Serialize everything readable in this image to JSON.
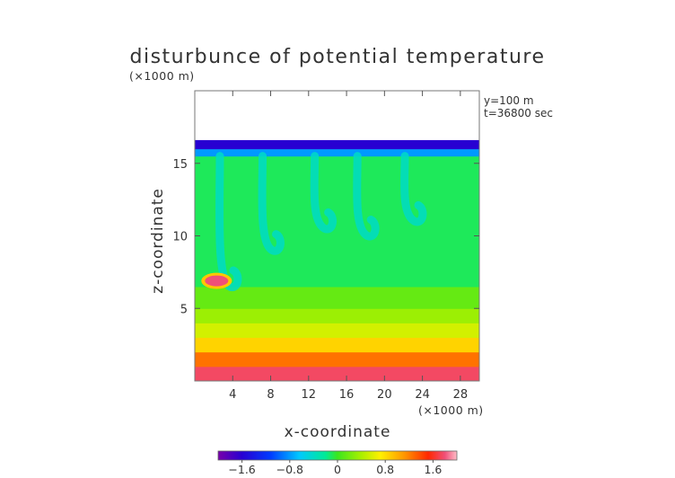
{
  "chart_data": {
    "type": "heatmap",
    "title": "disturbunce of potential temperature",
    "xlabel": "x-coordinate",
    "ylabel": "z-coordinate",
    "x_unit": "(×1000 m)",
    "z_unit": "(×1000 m)",
    "annotations": [
      "y=100 m",
      "t=36800 sec"
    ],
    "xlim": [
      0,
      30
    ],
    "ylim": [
      0,
      20
    ],
    "x_ticks": [
      4,
      8,
      12,
      16,
      20,
      24,
      28
    ],
    "x_tick_labels": [
      "4",
      "8",
      "12",
      "16",
      "20",
      "24",
      "28"
    ],
    "y_ticks": [
      5,
      10,
      15
    ],
    "y_tick_labels": [
      "5",
      "10",
      "15"
    ],
    "colorbar": {
      "ticks": [
        -1.6,
        -0.8,
        0,
        0.8,
        1.6
      ],
      "tick_labels": [
        "−1.6",
        "−0.8",
        "0",
        "0.8",
        "1.6"
      ],
      "range": [
        -2.0,
        2.0
      ]
    },
    "field_bands": [
      {
        "z_from": 0.0,
        "z_to": 1.0,
        "value": 1.75
      },
      {
        "z_from": 1.0,
        "z_to": 2.0,
        "value": 1.25
      },
      {
        "z_from": 2.0,
        "z_to": 3.0,
        "value": 0.85
      },
      {
        "z_from": 3.0,
        "z_to": 4.0,
        "value": 0.55
      },
      {
        "z_from": 4.0,
        "z_to": 5.0,
        "value": 0.35
      },
      {
        "z_from": 5.0,
        "z_to": 6.5,
        "value": 0.15
      },
      {
        "z_from": 6.5,
        "z_to": 15.5,
        "value": -0.1
      },
      {
        "z_from": 15.5,
        "z_to": 16.0,
        "value": -0.8
      },
      {
        "z_from": 16.0,
        "z_to": 16.6,
        "value": -1.6
      }
    ],
    "plumes": [
      {
        "x": 3.5,
        "z_top": 15.5,
        "z_bottom": 6.5,
        "value": -0.4
      },
      {
        "x": 8.0,
        "z_top": 15.5,
        "z_bottom": 9.0,
        "value": -0.4
      },
      {
        "x": 13.5,
        "z_top": 15.5,
        "z_bottom": 10.5,
        "value": -0.4
      },
      {
        "x": 18.0,
        "z_top": 15.5,
        "z_bottom": 10.0,
        "value": -0.4
      },
      {
        "x": 23.0,
        "z_top": 15.5,
        "z_bottom": 11.0,
        "value": -0.4
      }
    ],
    "hot_spot": {
      "x": 2.3,
      "z": 6.9,
      "value": 1.8
    }
  }
}
